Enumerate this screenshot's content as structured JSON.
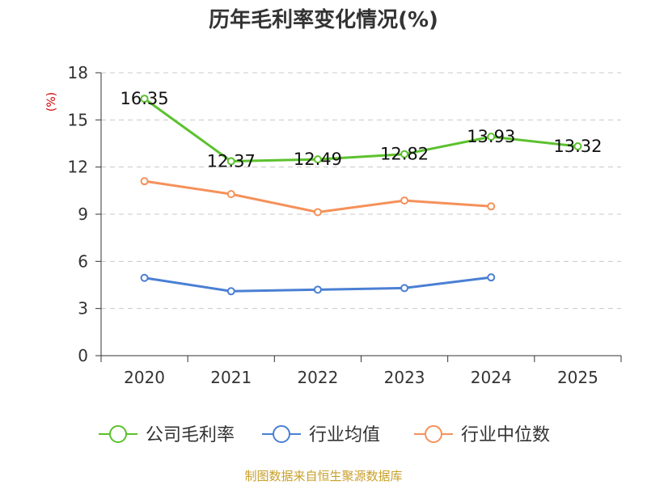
{
  "title": "历年毛利率变化情况(%)",
  "source": "制图数据来自恒生聚源数据库",
  "chart_data": {
    "type": "line",
    "title": "历年毛利率变化情况(%)",
    "ylabel": "(%)",
    "xlabel": "",
    "categories": [
      "2020",
      "2021",
      "2022",
      "2023",
      "2024",
      "2025"
    ],
    "ylim": [
      0,
      18
    ],
    "yticks": [
      0,
      3,
      6,
      9,
      12,
      15,
      18
    ],
    "grid": true,
    "legend_position": "bottom",
    "series": [
      {
        "name": "公司毛利率",
        "color": "#5cc12e",
        "values": [
          16.35,
          12.37,
          12.49,
          12.82,
          13.93,
          13.32
        ],
        "labels": [
          "16.35",
          "12.37",
          "12.49",
          "12.82",
          "13.93",
          "13.32"
        ]
      },
      {
        "name": "行业均值",
        "color": "#4a7fd4",
        "values": [
          4.95,
          4.1,
          4.2,
          4.3,
          4.98,
          null
        ]
      },
      {
        "name": "行业中位数",
        "color": "#f5915a",
        "values": [
          11.1,
          10.28,
          9.13,
          9.87,
          9.5,
          null
        ]
      }
    ]
  }
}
